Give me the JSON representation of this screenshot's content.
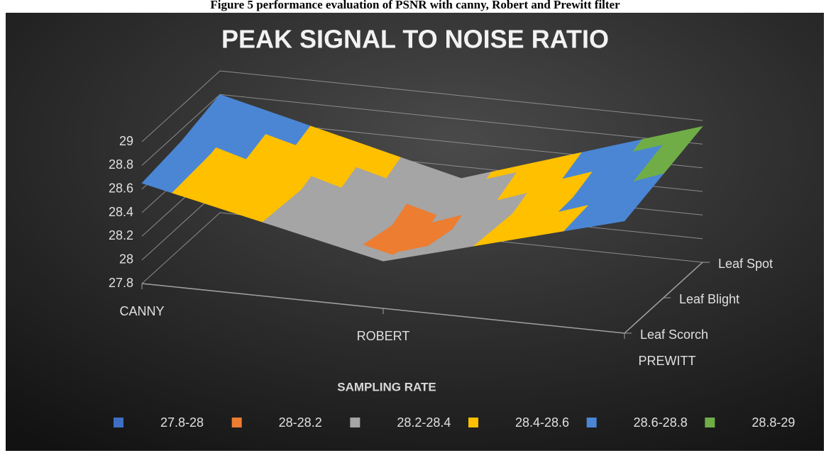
{
  "caption": "Figure 5 performance evaluation of PSNR with canny, Robert and Prewitt filter",
  "chart_data": {
    "type": "surface",
    "title": "PEAK SIGNAL TO NOISE RATIO",
    "x_label": "SAMPLING RATE",
    "categories": [
      "CANNY",
      "ROBERT",
      "PREWITT"
    ],
    "series": [
      {
        "name": "Leaf Scorch",
        "values": [
          28.65,
          28.2,
          28.75
        ]
      },
      {
        "name": "Leaf Blight",
        "values": [
          28.7,
          28.1,
          28.85
        ]
      },
      {
        "name": "Leaf Spot",
        "values": [
          28.8,
          28.3,
          28.95
        ]
      }
    ],
    "zlim": [
      27.8,
      29
    ],
    "zticks": [
      27.8,
      28,
      28.2,
      28.4,
      28.6,
      28.8,
      29
    ],
    "legend_bands": [
      {
        "label": "27.8-28",
        "color": "#3e6fc4"
      },
      {
        "label": "28-28.2",
        "color": "#ed7d31"
      },
      {
        "label": "28.2-28.4",
        "color": "#a5a5a5"
      },
      {
        "label": "28.4-28.6",
        "color": "#ffc000"
      },
      {
        "label": "28.6-28.8",
        "color": "#4a86d4"
      },
      {
        "label": "28.8-29",
        "color": "#70ad47"
      }
    ],
    "legend": "bottom"
  }
}
